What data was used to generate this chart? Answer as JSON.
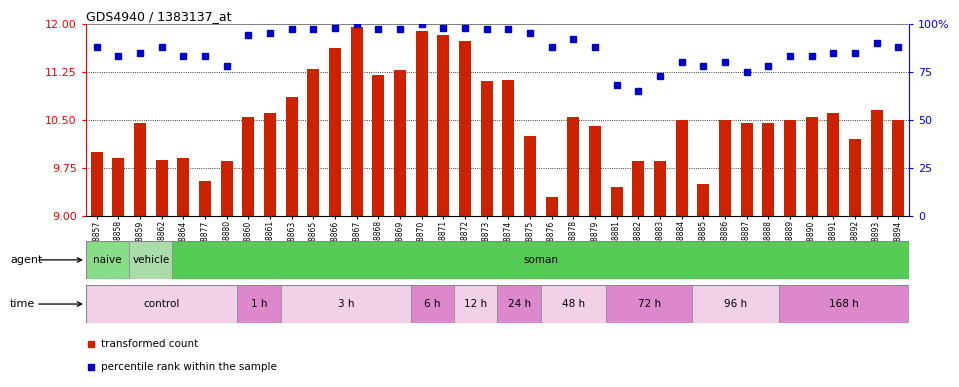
{
  "title": "GDS4940 / 1383137_at",
  "samples": [
    "GSM338857",
    "GSM338858",
    "GSM338859",
    "GSM338862",
    "GSM338864",
    "GSM338877",
    "GSM338880",
    "GSM338860",
    "GSM338861",
    "GSM338863",
    "GSM338865",
    "GSM338866",
    "GSM338867",
    "GSM338868",
    "GSM338869",
    "GSM338870",
    "GSM338871",
    "GSM338872",
    "GSM338873",
    "GSM338874",
    "GSM338875",
    "GSM338876",
    "GSM338878",
    "GSM338879",
    "GSM338881",
    "GSM338882",
    "GSM338883",
    "GSM338884",
    "GSM338885",
    "GSM338886",
    "GSM338887",
    "GSM338888",
    "GSM338889",
    "GSM338890",
    "GSM338891",
    "GSM338892",
    "GSM338893",
    "GSM338894"
  ],
  "bar_values": [
    10.0,
    9.9,
    10.45,
    9.87,
    9.9,
    9.55,
    9.85,
    10.55,
    10.6,
    10.85,
    11.3,
    11.62,
    11.95,
    11.2,
    11.27,
    11.88,
    11.83,
    11.73,
    11.1,
    11.12,
    10.25,
    9.3,
    10.55,
    10.4,
    9.45,
    9.85,
    9.85,
    10.5,
    9.5,
    10.5,
    10.45,
    10.45,
    10.5,
    10.55,
    10.6,
    10.2,
    10.65,
    10.5
  ],
  "dot_values": [
    88,
    83,
    85,
    88,
    83,
    83,
    78,
    94,
    95,
    97,
    97,
    98,
    100,
    97,
    97,
    100,
    98,
    98,
    97,
    97,
    95,
    88,
    92,
    88,
    68,
    65,
    73,
    80,
    78,
    80,
    75,
    78,
    83,
    83,
    85,
    85,
    90,
    88
  ],
  "bar_color": "#cc2200",
  "dot_color": "#0000cc",
  "ylim_left": [
    9.0,
    12.0
  ],
  "ylim_right": [
    0,
    100
  ],
  "yticks_left": [
    9.0,
    9.75,
    10.5,
    11.25,
    12.0
  ],
  "yticks_right": [
    0,
    25,
    50,
    75,
    100
  ],
  "grid_lines": [
    9.75,
    10.5,
    11.25
  ],
  "agent_groups": [
    {
      "label": "naive",
      "start": 0,
      "end": 2,
      "color": "#88dd88"
    },
    {
      "label": "vehicle",
      "start": 2,
      "end": 4,
      "color": "#aaddaa"
    },
    {
      "label": "soman",
      "start": 4,
      "end": 38,
      "color": "#55cc55"
    }
  ],
  "time_groups": [
    {
      "label": "control",
      "start": 0,
      "end": 7,
      "color": "#f2d0e8"
    },
    {
      "label": "1 h",
      "start": 7,
      "end": 9,
      "color": "#dd88cc"
    },
    {
      "label": "3 h",
      "start": 9,
      "end": 15,
      "color": "#f2d0e8"
    },
    {
      "label": "6 h",
      "start": 15,
      "end": 17,
      "color": "#dd88cc"
    },
    {
      "label": "12 h",
      "start": 17,
      "end": 19,
      "color": "#f2d0e8"
    },
    {
      "label": "24 h",
      "start": 19,
      "end": 21,
      "color": "#dd88cc"
    },
    {
      "label": "48 h",
      "start": 21,
      "end": 24,
      "color": "#f2d0e8"
    },
    {
      "label": "72 h",
      "start": 24,
      "end": 28,
      "color": "#dd88cc"
    },
    {
      "label": "96 h",
      "start": 28,
      "end": 32,
      "color": "#f2d0e8"
    },
    {
      "label": "168 h",
      "start": 32,
      "end": 38,
      "color": "#dd88cc"
    }
  ],
  "n_samples": 38
}
